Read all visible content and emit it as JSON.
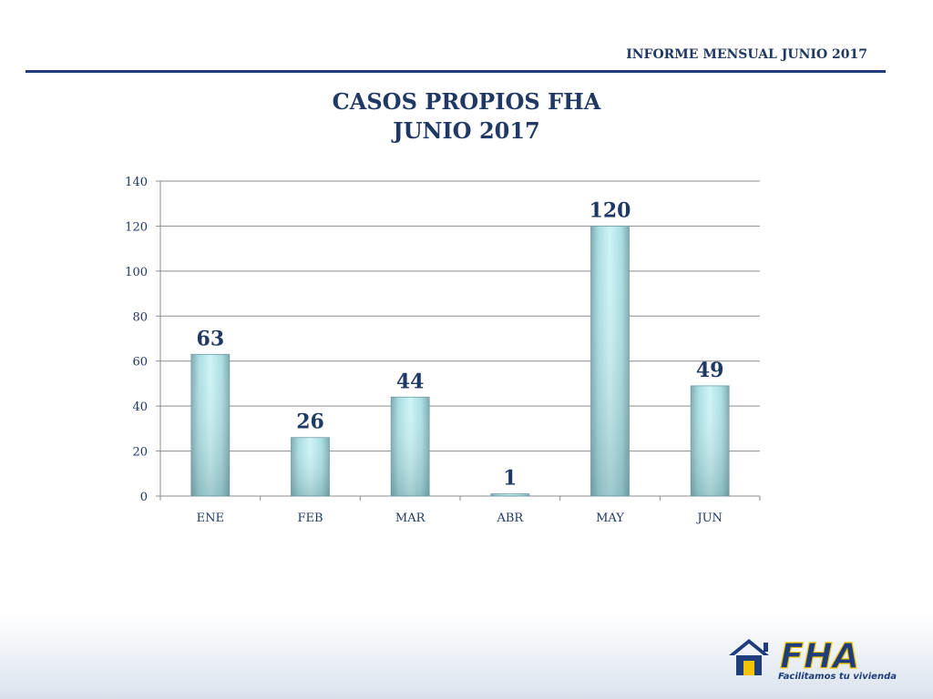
{
  "header": {
    "report_label": "INFORME MENSUAL JUNIO 2017"
  },
  "chart_data": {
    "type": "bar",
    "title": [
      "CASOS PROPIOS FHA",
      "JUNIO 2017"
    ],
    "categories": [
      "ENE",
      "FEB",
      "MAR",
      "ABR",
      "MAY",
      "JUN"
    ],
    "values": [
      63,
      26,
      44,
      1,
      120,
      49
    ],
    "ylim": [
      0,
      140
    ],
    "yticks": [
      0,
      20,
      40,
      60,
      80,
      100,
      120,
      140
    ],
    "grid": true,
    "data_labels": true
  },
  "logo": {
    "text": "FHA",
    "tagline": "Facilitamos tu vivienda"
  },
  "colors": {
    "brand_blue": "#1f3864",
    "rule_blue": "#1f3d7a",
    "bar_top": "#cdf4f6",
    "bar_mid": "#a9dde2",
    "bar_bottom": "#86b2b6",
    "logo_yellow": "#f2c500"
  }
}
